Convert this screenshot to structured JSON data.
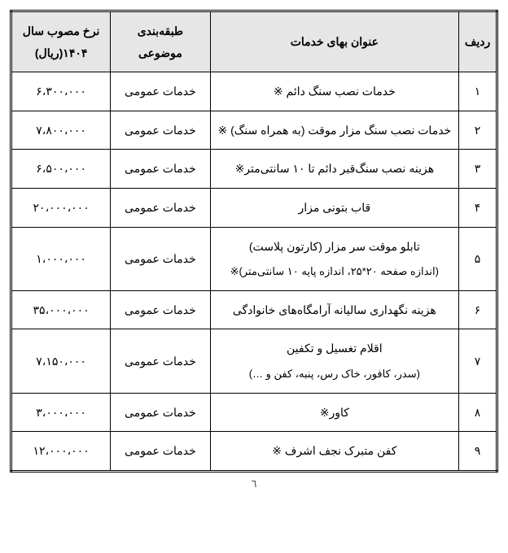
{
  "table": {
    "headers": {
      "index": "ردیف",
      "title": "عنوان بهای خدمات",
      "category": "طبقه‌بندی موضوعی",
      "rate": "نرخ مصوب سال ۱۴۰۴(ریال)"
    },
    "rows": [
      {
        "index": "۱",
        "title": "خدمات نصب سنگ دائم ※",
        "sub": "",
        "category": "خدمات عمومی",
        "rate": "۶،۳۰۰،۰۰۰"
      },
      {
        "index": "۲",
        "title": "خدمات نصب سنگ مزار موقت (به همراه سنگ) ※",
        "sub": "",
        "category": "خدمات عمومی",
        "rate": "۷،۸۰۰،۰۰۰"
      },
      {
        "index": "۳",
        "title": "هزینه نصب سنگ‌قبر دائم تا ۱۰ سانتی‌متر※",
        "sub": "",
        "category": "خدمات عمومی",
        "rate": "۶،۵۰۰،۰۰۰"
      },
      {
        "index": "۴",
        "title": "قاب بتونی مزار",
        "sub": "",
        "category": "خدمات عمومی",
        "rate": "۲۰،۰۰۰،۰۰۰"
      },
      {
        "index": "۵",
        "title": "تابلو موقت سر مزار (کارتون پلاست)",
        "sub": "(اندازه صفحه ۲۰*۲۵، اندازه پایه ۱۰ سانتی‌متر)※",
        "category": "خدمات عمومی",
        "rate": "۱،۰۰۰،۰۰۰"
      },
      {
        "index": "۶",
        "title": "هزینه نگهداری سالیانه آرامگاه‌های خانوادگی",
        "sub": "",
        "category": "خدمات عمومی",
        "rate": "۳۵،۰۰۰،۰۰۰"
      },
      {
        "index": "۷",
        "title": "اقلام تغسیل و تکفین",
        "sub": "(سدر، کافور، خاک رس، پنبه، کفن و …)",
        "category": "خدمات عمومی",
        "rate": "۷،۱۵۰،۰۰۰"
      },
      {
        "index": "۸",
        "title": "کاور※",
        "sub": "",
        "category": "خدمات عمومی",
        "rate": "۳،۰۰۰،۰۰۰"
      },
      {
        "index": "۹",
        "title": "کفن متبرک نجف اشرف ※",
        "sub": "",
        "category": "خدمات عمومی",
        "rate": "۱۲،۰۰۰،۰۰۰"
      }
    ],
    "page_number": "٦"
  }
}
